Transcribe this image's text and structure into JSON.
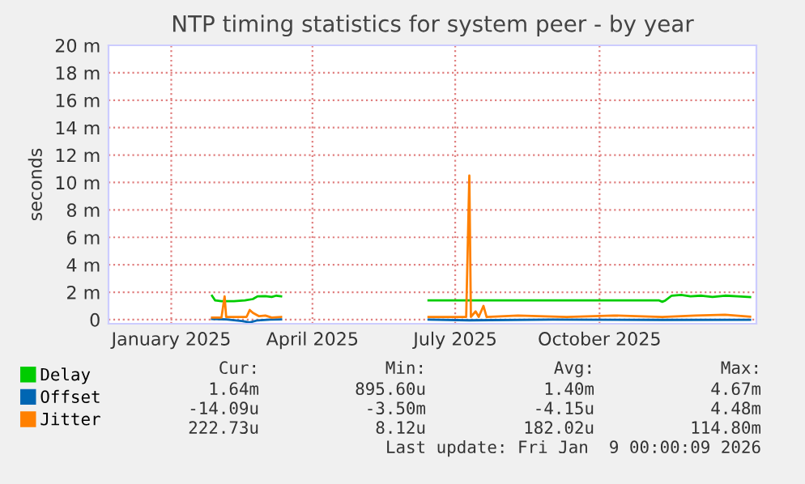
{
  "chart_data": {
    "type": "line",
    "title": "NTP timing statistics for system peer - by year",
    "ylabel": "seconds",
    "xlim": [
      "2024-11-22",
      "2026-01-09"
    ],
    "xticks": [
      {
        "value": "2025-01-01",
        "label": "January 2025"
      },
      {
        "value": "2025-04-01",
        "label": "April 2025"
      },
      {
        "value": "2025-07-01",
        "label": "July 2025"
      },
      {
        "value": "2025-10-01",
        "label": "October 2025"
      }
    ],
    "ylim": [
      -0.3,
      20
    ],
    "yticks": [
      {
        "value": 0,
        "label": "0"
      },
      {
        "value": 2,
        "label": "2 m"
      },
      {
        "value": 4,
        "label": "4 m"
      },
      {
        "value": 6,
        "label": "6 m"
      },
      {
        "value": 8,
        "label": "8 m"
      },
      {
        "value": 10,
        "label": "10 m"
      },
      {
        "value": 12,
        "label": "12 m"
      },
      {
        "value": 14,
        "label": "14 m"
      },
      {
        "value": 16,
        "label": "16 m"
      },
      {
        "value": 18,
        "label": "18 m"
      },
      {
        "value": 20,
        "label": "20 m"
      }
    ],
    "grid": true,
    "legend": "bottom",
    "marker": "none",
    "line_style": "solid",
    "series": [
      {
        "name": "Delay",
        "color": "#00cc00",
        "x": [
          "2025-01-27",
          "2025-01-29",
          "2025-02-02",
          "2025-02-10",
          "2025-02-17",
          "2025-02-22",
          "2025-02-25",
          "2025-03-02",
          "2025-03-06",
          "2025-03-09",
          "2025-03-12",
          "2025-04-01",
          "2025-06-14",
          "2025-11-08",
          "2025-11-10",
          "2025-11-12",
          "2025-11-16",
          "2025-11-22",
          "2025-11-28",
          "2025-12-05",
          "2025-12-12",
          "2025-12-20",
          "2025-12-28",
          "2026-01-05"
        ],
        "values": [
          1.74,
          1.4,
          1.35,
          1.35,
          1.4,
          1.5,
          1.7,
          1.72,
          1.65,
          1.75,
          1.7,
          null,
          1.4,
          1.4,
          1.3,
          1.4,
          1.75,
          1.8,
          1.7,
          1.75,
          1.65,
          1.75,
          1.7,
          1.64
        ]
      },
      {
        "name": "Offset",
        "color": "#0066b3",
        "x": [
          "2025-01-27",
          "2025-02-05",
          "2025-02-15",
          "2025-02-20",
          "2025-02-25",
          "2025-03-05",
          "2025-03-12",
          "2025-04-01",
          "2025-06-14",
          "2025-07-10",
          "2025-09-01",
          "2025-11-10",
          "2026-01-05"
        ],
        "values": [
          0.05,
          0.02,
          -0.1,
          -0.2,
          -0.05,
          0.0,
          0.02,
          null,
          0.0,
          -0.05,
          0.0,
          -0.02,
          -0.01
        ]
      },
      {
        "name": "Jitter",
        "color": "#ff8000",
        "x": [
          "2025-01-27",
          "2025-02-02",
          "2025-02-04",
          "2025-02-05",
          "2025-02-18",
          "2025-02-20",
          "2025-02-22",
          "2025-02-26",
          "2025-03-02",
          "2025-03-06",
          "2025-03-12",
          "2025-04-01",
          "2025-06-14",
          "2025-07-08",
          "2025-07-10",
          "2025-07-11",
          "2025-07-14",
          "2025-07-16",
          "2025-07-19",
          "2025-07-21",
          "2025-08-10",
          "2025-09-10",
          "2025-10-10",
          "2025-11-10",
          "2025-12-01",
          "2025-12-20",
          "2026-01-05"
        ],
        "values": [
          0.15,
          0.15,
          1.7,
          0.2,
          0.2,
          0.7,
          0.5,
          0.25,
          0.3,
          0.15,
          0.2,
          null,
          0.2,
          0.2,
          10.5,
          0.2,
          0.6,
          0.2,
          1.0,
          0.2,
          0.3,
          0.2,
          0.3,
          0.2,
          0.3,
          0.35,
          0.22
        ]
      }
    ],
    "annotations": [
      "Cur:",
      "Min:",
      "Avg:",
      "Max:",
      "1.64m",
      "895.60u",
      "1.40m",
      "4.67m",
      "-14.09u",
      "-3.50m",
      "-4.15u",
      "4.48m",
      "222.73u",
      "8.12u",
      "182.02u",
      "114.80m",
      "Last update: Fri Jan  9 00:00:09 2026"
    ]
  }
}
